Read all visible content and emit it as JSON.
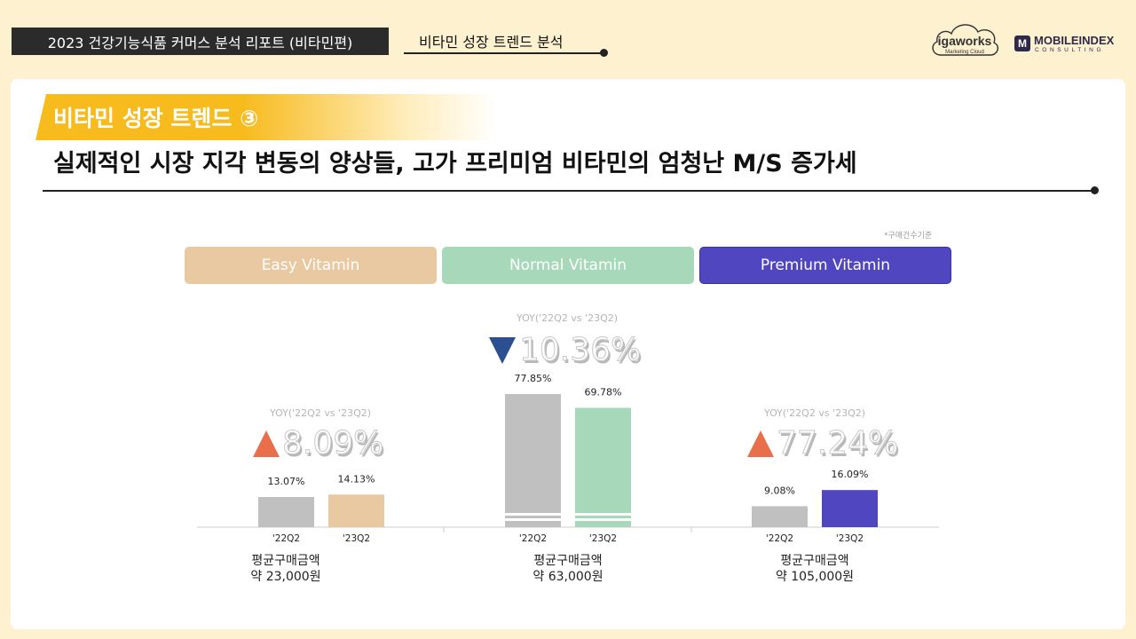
{
  "header": {
    "report_title": "2023 건강기능식품 커머스 분석 리포트 (비타민편)",
    "section_title": "비타민 성장 트렌드 분석"
  },
  "logos": {
    "igaworks": "igaworks",
    "igaworks_sub": "Marketing Cloud",
    "mobileindex_mark": "M",
    "mobileindex": "MOBILEINDEX",
    "mobileindex_sub": "CONSULTING"
  },
  "slide": {
    "heading": "비타민 성장 트렌드 ③",
    "headline": "실제적인 시장 지각 변동의 양상들, 고가 프리미엄 비타민의 엄청난 M/S 증가세",
    "note": "*구매건수기준"
  },
  "colors": {
    "easy": "#e8c9a1",
    "normal": "#a7d8b9",
    "premium": "#5046c0",
    "prior": "#c0c0c0",
    "up_arrow": "#e96f4b",
    "down_arrow": "#2c4f8f"
  },
  "chart_data": {
    "type": "bar",
    "unit": "%",
    "groups": [
      {
        "name": "Easy Vitamin",
        "categories": [
          "'22Q2",
          "'23Q2"
        ],
        "values": [
          13.07,
          14.13
        ],
        "value_labels": [
          "13.07%",
          "14.13%"
        ],
        "yoy_label": "YOY('22Q2 vs '23Q2)",
        "yoy_value": "8.09%",
        "yoy_direction": "up",
        "price_label": "평균구매금액",
        "price_value": "약 23,000원"
      },
      {
        "name": "Normal Vitamin",
        "categories": [
          "'22Q2",
          "'23Q2"
        ],
        "values": [
          77.85,
          69.78
        ],
        "value_labels": [
          "77.85%",
          "69.78%"
        ],
        "axis_break": true,
        "yoy_label": "YOY('22Q2 vs '23Q2)",
        "yoy_value": "10.36%",
        "yoy_direction": "down",
        "price_label": "평균구매금액",
        "price_value": "약 63,000원"
      },
      {
        "name": "Premium Vitamin",
        "categories": [
          "'22Q2",
          "'23Q2"
        ],
        "values": [
          9.08,
          16.09
        ],
        "value_labels": [
          "9.08%",
          "16.09%"
        ],
        "yoy_label": "YOY('22Q2 vs '23Q2)",
        "yoy_value": "77.24%",
        "yoy_direction": "up",
        "price_label": "평균구매금액",
        "price_value": "약 105,000원"
      }
    ]
  }
}
